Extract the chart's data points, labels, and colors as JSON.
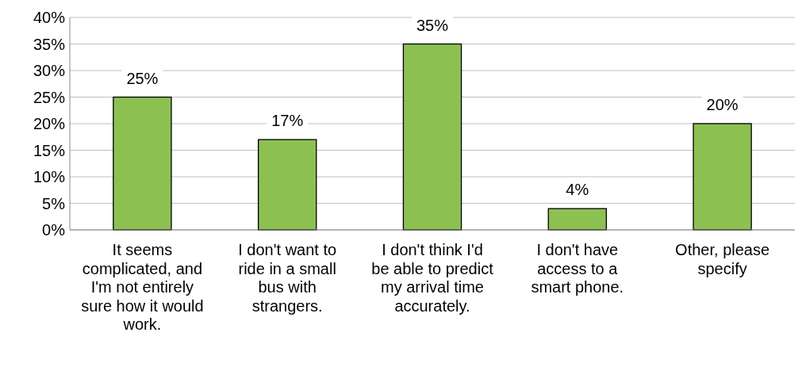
{
  "chart_data": {
    "type": "bar",
    "categories": [
      "It seems complicated, and I'm not entirely sure how it would work.",
      "I don't want to ride in a small bus with strangers.",
      "I don't think I'd be able to predict my arrival time accurately.",
      "I don't have access to a smart phone.",
      "Other, please specify"
    ],
    "values": [
      25,
      17,
      35,
      4,
      20
    ],
    "value_labels": [
      "25%",
      "17%",
      "35%",
      "4%",
      "20%"
    ],
    "color": "#8cc152",
    "ylim": [
      0,
      40
    ],
    "yticks": [
      {
        "value": 0,
        "label": "0%"
      },
      {
        "value": 5,
        "label": "5%"
      },
      {
        "value": 10,
        "label": "10%"
      },
      {
        "value": 15,
        "label": "15%"
      },
      {
        "value": 20,
        "label": "20%"
      },
      {
        "value": 25,
        "label": "25%"
      },
      {
        "value": 30,
        "label": "30%"
      },
      {
        "value": 35,
        "label": "35%"
      },
      {
        "value": 40,
        "label": "40%"
      }
    ],
    "grid": "y"
  }
}
